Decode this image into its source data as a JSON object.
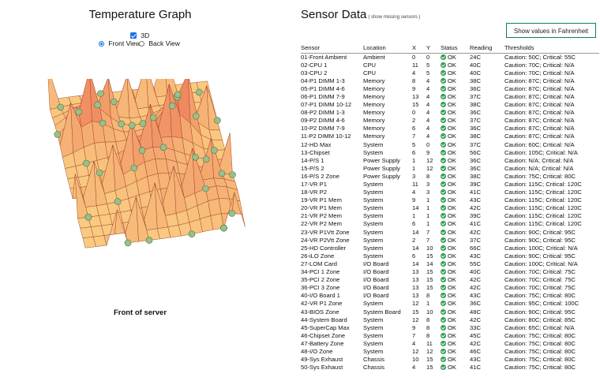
{
  "graph": {
    "title": "Temperature Graph",
    "toggle_3d_label": "3D",
    "toggle_3d_checked": true,
    "view_front_label": "Front View",
    "view_back_label": "Back View",
    "selected_view": "front",
    "caption": "Front of server"
  },
  "sensors": {
    "title": "Sensor Data",
    "missing_link": "( show missing sensors )",
    "fahrenheit_button": "Show values in Fahrenheit",
    "columns": [
      "Sensor",
      "Location",
      "X",
      "Y",
      "Status",
      "Reading",
      "Thresholds"
    ],
    "status_color": "#2e9e4f",
    "rows": [
      [
        "01-Front Ambient",
        "Ambient",
        "0",
        "0",
        "OK",
        "24C",
        "Caution: 50C; Critical: 55C"
      ],
      [
        "02-CPU 1",
        "CPU",
        "11",
        "5",
        "OK",
        "40C",
        "Caution: 70C; Critical: N/A"
      ],
      [
        "03-CPU 2",
        "CPU",
        "4",
        "5",
        "OK",
        "40C",
        "Caution: 70C; Critical: N/A"
      ],
      [
        "04-P1 DIMM 1-3",
        "Memory",
        "8",
        "4",
        "OK",
        "38C",
        "Caution: 87C; Critical: N/A"
      ],
      [
        "05-P1 DIMM 4-6",
        "Memory",
        "9",
        "4",
        "OK",
        "36C",
        "Caution: 87C; Critical: N/A"
      ],
      [
        "06-P1 DIMM 7-9",
        "Memory",
        "13",
        "4",
        "OK",
        "37C",
        "Caution: 87C; Critical: N/A"
      ],
      [
        "07-P1 DIMM 10-12",
        "Memory",
        "15",
        "4",
        "OK",
        "38C",
        "Caution: 87C; Critical: N/A"
      ],
      [
        "08-P2 DIMM 1-3",
        "Memory",
        "0",
        "4",
        "OK",
        "36C",
        "Caution: 87C; Critical: N/A"
      ],
      [
        "09-P2 DIMM 4-6",
        "Memory",
        "2",
        "4",
        "OK",
        "37C",
        "Caution: 87C; Critical: N/A"
      ],
      [
        "10-P2 DIMM 7-9",
        "Memory",
        "6",
        "4",
        "OK",
        "36C",
        "Caution: 87C; Critical: N/A"
      ],
      [
        "11-P2 DIMM 10-12",
        "Memory",
        "7",
        "4",
        "OK",
        "38C",
        "Caution: 87C; Critical: N/A"
      ],
      [
        "12-HD Max",
        "System",
        "5",
        "0",
        "OK",
        "37C",
        "Caution: 60C; Critical: N/A"
      ],
      [
        "13-Chipset",
        "System",
        "6",
        "9",
        "OK",
        "56C",
        "Caution: 105C; Critical: N/A"
      ],
      [
        "14-P/S 1",
        "Power Supply",
        "1",
        "12",
        "OK",
        "36C",
        "Caution: N/A; Critical: N/A"
      ],
      [
        "15-P/S 2",
        "Power Supply",
        "1",
        "12",
        "OK",
        "36C",
        "Caution: N/A; Critical: N/A"
      ],
      [
        "16-P/S 2 Zone",
        "Power Supply",
        "3",
        "8",
        "OK",
        "38C",
        "Caution: 75C; Critical: 80C"
      ],
      [
        "17-VR P1",
        "System",
        "11",
        "3",
        "OK",
        "39C",
        "Caution: 115C; Critical: 120C"
      ],
      [
        "18-VR P2",
        "System",
        "4",
        "3",
        "OK",
        "41C",
        "Caution: 115C; Critical: 120C"
      ],
      [
        "19-VR P1 Mem",
        "System",
        "9",
        "1",
        "OK",
        "43C",
        "Caution: 115C; Critical: 120C"
      ],
      [
        "20-VR P1 Mem",
        "System",
        "14",
        "1",
        "OK",
        "42C",
        "Caution: 115C; Critical: 120C"
      ],
      [
        "21-VR P2 Mem",
        "System",
        "1",
        "1",
        "OK",
        "39C",
        "Caution: 115C; Critical: 120C"
      ],
      [
        "22-VR P2 Mem",
        "System",
        "6",
        "1",
        "OK",
        "41C",
        "Caution: 115C; Critical: 120C"
      ],
      [
        "23-VR P1Vtt Zone",
        "System",
        "14",
        "7",
        "OK",
        "42C",
        "Caution: 90C; Critical: 95C"
      ],
      [
        "24-VR P2Vtt Zone",
        "System",
        "2",
        "7",
        "OK",
        "37C",
        "Caution: 90C; Critical: 95C"
      ],
      [
        "25-HD Controller",
        "System",
        "14",
        "10",
        "OK",
        "66C",
        "Caution: 100C; Critical: N/A"
      ],
      [
        "26-iLO Zone",
        "System",
        "6",
        "15",
        "OK",
        "43C",
        "Caution: 90C; Critical: 95C"
      ],
      [
        "27-LOM Card",
        "I/O Board",
        "14",
        "14",
        "OK",
        "55C",
        "Caution: 100C; Critical: N/A"
      ],
      [
        "34-PCI 1 Zone",
        "I/O Board",
        "13",
        "15",
        "OK",
        "40C",
        "Caution: 70C; Critical: 75C"
      ],
      [
        "35-PCI 2 Zone",
        "I/O Board",
        "13",
        "15",
        "OK",
        "42C",
        "Caution: 70C; Critical: 75C"
      ],
      [
        "36-PCI 3 Zone",
        "I/O Board",
        "13",
        "15",
        "OK",
        "42C",
        "Caution: 70C; Critical: 75C"
      ],
      [
        "40-I/O Board 1",
        "I/O Board",
        "13",
        "8",
        "OK",
        "43C",
        "Caution: 75C; Critical: 80C"
      ],
      [
        "42-VR P1 Zone",
        "System",
        "12",
        "1",
        "OK",
        "36C",
        "Caution: 95C; Critical: 100C"
      ],
      [
        "43-BIOS Zone",
        "System Board",
        "15",
        "10",
        "OK",
        "48C",
        "Caution: 90C; Critical: 95C"
      ],
      [
        "44-System Board",
        "System",
        "12",
        "8",
        "OK",
        "42C",
        "Caution: 80C; Critical: 85C"
      ],
      [
        "45-SuperCap Max",
        "System",
        "9",
        "8",
        "OK",
        "33C",
        "Caution: 65C; Critical: N/A"
      ],
      [
        "46-Chipset Zone",
        "System",
        "7",
        "8",
        "OK",
        "45C",
        "Caution: 75C; Critical: 80C"
      ],
      [
        "47-Battery Zone",
        "System",
        "4",
        "11",
        "OK",
        "42C",
        "Caution: 75C; Critical: 80C"
      ],
      [
        "48-I/O Zone",
        "System",
        "12",
        "12",
        "OK",
        "46C",
        "Caution: 75C; Critical: 80C"
      ],
      [
        "49-Sys Exhaust",
        "Chassis",
        "10",
        "15",
        "OK",
        "43C",
        "Caution: 75C; Critical: 80C"
      ],
      [
        "50-Sys Exhaust",
        "Chassis",
        "4",
        "15",
        "OK",
        "41C",
        "Caution: 75C; Critical: 80C"
      ]
    ]
  }
}
